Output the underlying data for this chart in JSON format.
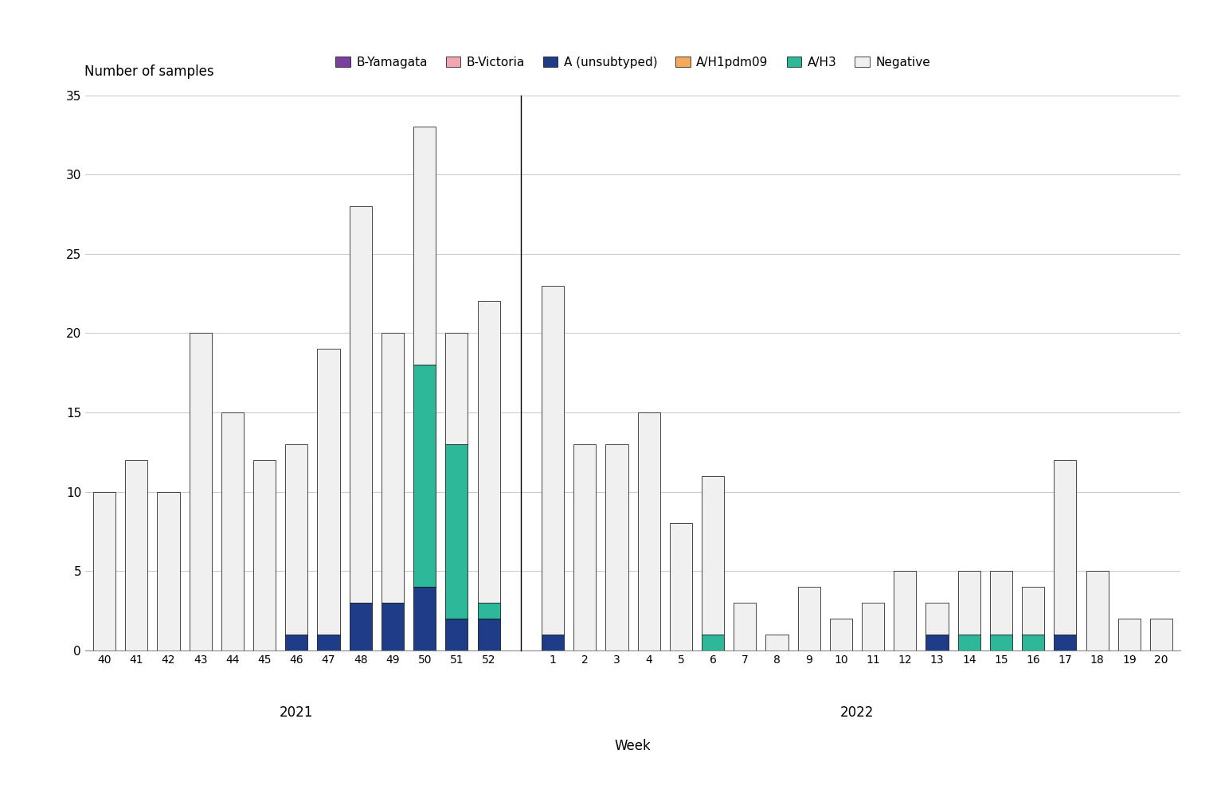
{
  "weeks_2021": [
    "40",
    "41",
    "42",
    "43",
    "44",
    "45",
    "46",
    "47",
    "48",
    "49",
    "50",
    "51",
    "52"
  ],
  "weeks_2022": [
    "1",
    "2",
    "3",
    "4",
    "5",
    "6",
    "7",
    "8",
    "9",
    "10",
    "11",
    "12",
    "13",
    "14",
    "15",
    "16",
    "17",
    "18",
    "19",
    "20"
  ],
  "series": {
    "B-Yamagata": {
      "color": "#7B3F9E",
      "values_2021": [
        0,
        0,
        0,
        0,
        0,
        0,
        0,
        0,
        0,
        0,
        0,
        0,
        0
      ],
      "values_2022": [
        0,
        0,
        0,
        0,
        0,
        0,
        0,
        0,
        0,
        0,
        0,
        0,
        0,
        0,
        0,
        0,
        0,
        0,
        0,
        0
      ]
    },
    "B-Victoria": {
      "color": "#F4A6B0",
      "values_2021": [
        0,
        0,
        0,
        0,
        0,
        0,
        0,
        0,
        0,
        0,
        0,
        0,
        0
      ],
      "values_2022": [
        0,
        0,
        0,
        0,
        0,
        0,
        0,
        0,
        0,
        0,
        0,
        0,
        0,
        0,
        0,
        0,
        0,
        0,
        0,
        0
      ]
    },
    "A (unsubtyped)": {
      "color": "#1F3C88",
      "values_2021": [
        0,
        0,
        0,
        0,
        0,
        0,
        1,
        1,
        3,
        3,
        4,
        2,
        2
      ],
      "values_2022": [
        1,
        0,
        0,
        0,
        0,
        0,
        0,
        0,
        0,
        0,
        0,
        0,
        1,
        0,
        0,
        0,
        1,
        0,
        0,
        0
      ]
    },
    "A/H1pdm09": {
      "color": "#F5A95A",
      "values_2021": [
        0,
        0,
        0,
        0,
        0,
        0,
        0,
        0,
        0,
        0,
        0,
        0,
        0
      ],
      "values_2022": [
        0,
        0,
        0,
        0,
        0,
        0,
        0,
        0,
        0,
        0,
        0,
        0,
        0,
        0,
        0,
        0,
        0,
        0,
        0,
        0
      ]
    },
    "A/H3": {
      "color": "#2EB89A",
      "values_2021": [
        0,
        0,
        0,
        0,
        0,
        0,
        0,
        0,
        0,
        0,
        14,
        11,
        1
      ],
      "values_2022": [
        0,
        0,
        0,
        0,
        0,
        1,
        0,
        0,
        0,
        0,
        0,
        0,
        0,
        1,
        1,
        1,
        0,
        0,
        0,
        0
      ]
    },
    "Negative": {
      "color": "#F0F0F0",
      "values_2021": [
        10,
        12,
        10,
        20,
        15,
        12,
        12,
        18,
        25,
        17,
        15,
        7,
        19
      ],
      "values_2022": [
        22,
        13,
        13,
        15,
        8,
        10,
        3,
        1,
        4,
        2,
        3,
        5,
        2,
        4,
        4,
        3,
        11,
        5,
        2,
        2
      ]
    }
  },
  "ylabel": "Number of samples",
  "xlabel": "Week",
  "ylim": [
    0,
    35
  ],
  "yticks": [
    0,
    5,
    10,
    15,
    20,
    25,
    30,
    35
  ],
  "year_label_2021": "2021",
  "year_label_2022": "2022",
  "legend_order": [
    "B-Yamagata",
    "B-Victoria",
    "A (unsubtyped)",
    "A/H1pdm09",
    "A/H3",
    "Negative"
  ],
  "bar_edge_color": "#000000",
  "bar_edge_width": 0.5,
  "background_color": "#ffffff",
  "grid_color": "#cccccc"
}
